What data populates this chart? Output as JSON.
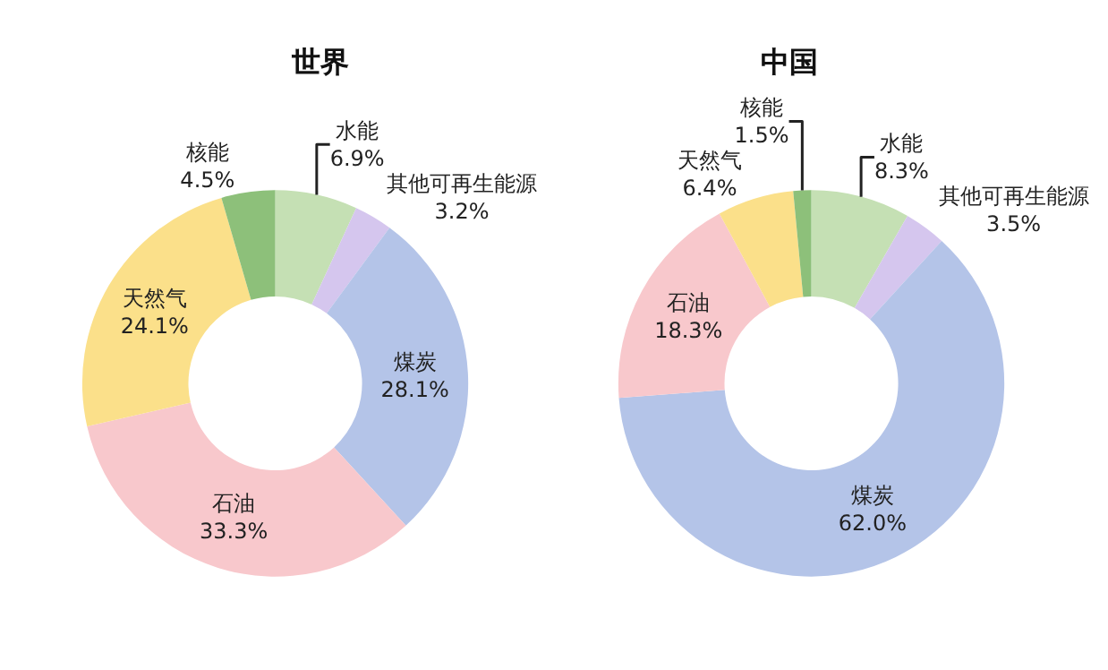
{
  "chart_data": [
    {
      "type": "donut",
      "title": "世界",
      "categories": [
        "水能",
        "其他可再生能源",
        "煤炭",
        "石油",
        "天然气",
        "核能"
      ],
      "values": [
        6.9,
        3.2,
        28.1,
        33.3,
        24.1,
        4.5
      ],
      "value_labels": [
        "6.9%",
        "3.2%",
        "28.1%",
        "33.3%",
        "24.1%",
        "4.5%"
      ],
      "colors": [
        "#c5e0b4",
        "#d5c6ee",
        "#b4c4e8",
        "#f8c8cc",
        "#fbe08a",
        "#8dc07a"
      ]
    },
    {
      "type": "donut",
      "title": "中国",
      "categories": [
        "水能",
        "其他可再生能源",
        "煤炭",
        "石油",
        "天然气",
        "核能"
      ],
      "values": [
        8.3,
        3.5,
        62.0,
        18.3,
        6.4,
        1.5
      ],
      "value_labels": [
        "8.3%",
        "3.5%",
        "62.0%",
        "18.3%",
        "6.4%",
        "1.5%"
      ],
      "colors": [
        "#c5e0b4",
        "#d5c6ee",
        "#b4c4e8",
        "#f8c8cc",
        "#fbe08a",
        "#8dc07a"
      ]
    }
  ]
}
